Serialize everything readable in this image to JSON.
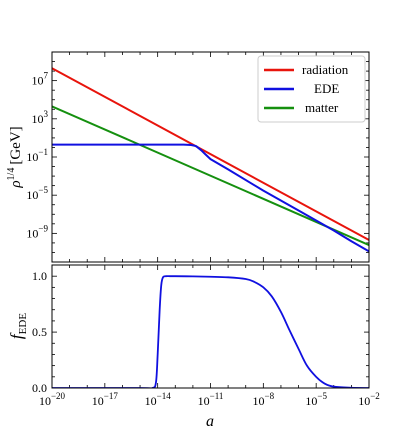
{
  "chart_data": [
    {
      "type": "line",
      "panel": "top",
      "xscale": "log",
      "yscale": "log",
      "xlim": [
        1e-20,
        0.01
      ],
      "ylim": [
        1e-12,
        10000000000.0
      ],
      "ylabel": "ρ",
      "ylabel_sup": "1/4",
      "ylabel_unit": "[GeV]",
      "yticks": [
        {
          "value": 10000000.0,
          "base": "10",
          "exp": "7"
        },
        {
          "value": 1000.0,
          "base": "10",
          "exp": "3"
        },
        {
          "value": 0.1,
          "base": "10",
          "exp": "−1"
        },
        {
          "value": 1e-05,
          "base": "10",
          "exp": "−5"
        },
        {
          "value": 1e-09,
          "base": "10",
          "exp": "−9"
        }
      ],
      "legend": {
        "position": "top-right"
      },
      "series": [
        {
          "name": "radiation",
          "color": "#e8140c",
          "x": [
            1e-20,
            0.01
          ],
          "y": [
            200000000.0,
            2e-10
          ]
        },
        {
          "name": "EDE",
          "color": "#1010e0",
          "x": [
            1e-20,
            1e-15,
            1e-14,
            1e-13,
            3e-13,
            8e-13,
            1.5e-12,
            3e-12,
            5e-12,
            1e-11,
            1e-10,
            1e-08,
            1e-06,
            0.0001,
            0.001,
            0.01
          ],
          "y": [
            2,
            2,
            2,
            2,
            2,
            1.8,
            1.4,
            0.5,
            0.2,
            0.06,
            0.005,
            3e-05,
            2.5e-07,
            2e-09,
            1.5e-10,
            1.3e-11
          ]
        },
        {
          "name": "matter",
          "color": "#15900f",
          "x": [
            1e-20,
            0.01
          ],
          "y": [
            20000.0,
            6e-11
          ]
        }
      ]
    },
    {
      "type": "line",
      "panel": "bottom",
      "xscale": "log",
      "xlim": [
        1e-20,
        0.01
      ],
      "ylim": [
        0,
        1.1
      ],
      "xlabel": "a",
      "ylabel": "f",
      "ylabel_sub": "EDE",
      "yticks": [
        "0.0",
        "0.5",
        "1.0"
      ],
      "xticks": [
        {
          "value": 1e-20,
          "base": "10",
          "exp": "−20"
        },
        {
          "value": 1e-17,
          "base": "10",
          "exp": "−17"
        },
        {
          "value": 1e-14,
          "base": "10",
          "exp": "−14"
        },
        {
          "value": 1e-11,
          "base": "10",
          "exp": "−11"
        },
        {
          "value": 1e-08,
          "base": "10",
          "exp": "−8"
        },
        {
          "value": 1e-05,
          "base": "10",
          "exp": "−5"
        },
        {
          "value": 0.01,
          "base": "10",
          "exp": "−2"
        }
      ],
      "series": [
        {
          "color": "#1010e0",
          "x": [
            1e-20,
            1e-15,
            5e-15,
            8e-15,
            1e-14,
            1.3e-14,
            1.6e-14,
            2e-14,
            3e-14,
            5e-14,
            1e-13,
            1e-12,
            1e-11,
            1e-10,
            1e-09,
            3e-09,
            1e-08,
            3e-08,
            1e-07,
            3e-07,
            1e-06,
            3e-06,
            1e-05,
            3e-05,
            0.0001,
            0.001,
            0.01
          ],
          "y": [
            0,
            0,
            0,
            0.05,
            0.3,
            0.7,
            0.92,
            0.99,
            1.0,
            1.0,
            1.0,
            0.998,
            0.995,
            0.99,
            0.975,
            0.95,
            0.9,
            0.82,
            0.68,
            0.52,
            0.35,
            0.2,
            0.1,
            0.04,
            0.012,
            0.002,
            0
          ]
        }
      ]
    }
  ]
}
